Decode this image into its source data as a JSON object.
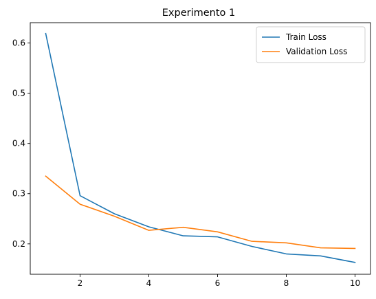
{
  "chart_data": {
    "type": "line",
    "title": "Experimento 1",
    "xlabel": "",
    "ylabel": "",
    "x": [
      1,
      2,
      3,
      4,
      5,
      6,
      7,
      8,
      9,
      10
    ],
    "xlim": [
      0.55,
      10.45
    ],
    "ylim": [
      0.1395,
      0.6405
    ],
    "xticks": [
      2,
      4,
      6,
      8,
      10
    ],
    "xtick_labels": [
      "2",
      "4",
      "6",
      "8",
      "10"
    ],
    "yticks": [
      0.2,
      0.3,
      0.4,
      0.5,
      0.6
    ],
    "ytick_labels": [
      "0.2",
      "0.3",
      "0.4",
      "0.5",
      "0.6"
    ],
    "grid": false,
    "legend_position": "top-right",
    "series": [
      {
        "name": "Train Loss",
        "color": "#1f77b4",
        "values": [
          0.619,
          0.296,
          0.26,
          0.234,
          0.216,
          0.214,
          0.195,
          0.18,
          0.176,
          0.163
        ]
      },
      {
        "name": "Validation Loss",
        "color": "#ff7f0e",
        "values": [
          0.335,
          0.279,
          0.255,
          0.227,
          0.233,
          0.224,
          0.205,
          0.202,
          0.192,
          0.191
        ]
      }
    ]
  }
}
